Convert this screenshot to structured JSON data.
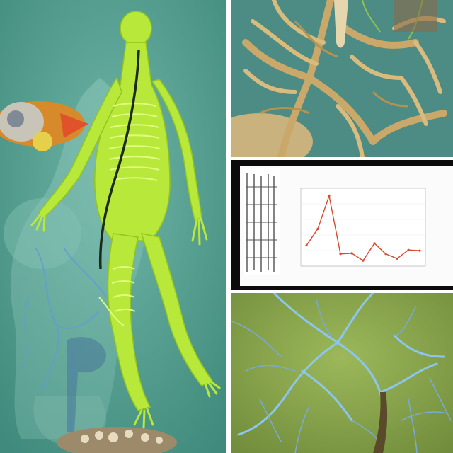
{
  "image": {
    "panels": [
      "skeletal-figure",
      "root-tendrils",
      "line-chart-screen",
      "blue-vein-network"
    ]
  },
  "colors": {
    "teal_background": "#4f9a8c",
    "lime_figure": "#b8e83a",
    "tan_roots": "#c9a86a",
    "chart_line": "#d9482f",
    "olive_background": "#8ba84a",
    "blue_veins": "#7fb8e6"
  },
  "chart_data": {
    "type": "line",
    "title": "",
    "xlabel": "",
    "ylabel": "",
    "x": [
      1,
      2,
      3,
      4,
      5,
      6,
      7,
      8,
      9,
      10,
      11
    ],
    "series": [
      {
        "values": [
          0.25,
          0.5,
          1.0,
          0.12,
          0.13,
          0.02,
          0.28,
          0.12,
          0.05,
          0.18,
          0.17
        ]
      }
    ],
    "ylim": [
      0,
      1.05
    ],
    "grid": true,
    "legend": "none"
  }
}
